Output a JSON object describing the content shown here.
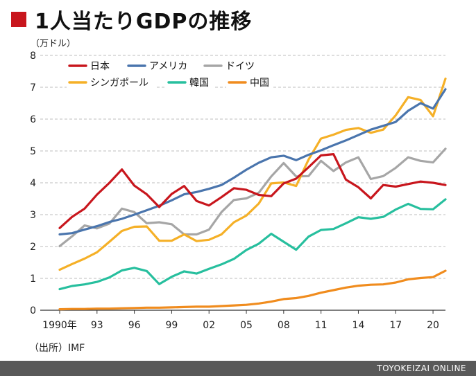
{
  "page": {
    "title": "1人当たりGDPの推移",
    "source": "（出所）IMF",
    "credit": "TOYOKEIZAI ONLINE"
  },
  "chart_data": {
    "type": "line",
    "title": "1人当たりGDPの推移",
    "ylabel": "（万ドル）",
    "xlabel": "",
    "ylim": [
      0,
      8
    ],
    "xlim": [
      1990,
      2021
    ],
    "y_ticks": [
      0,
      1,
      2,
      3,
      4,
      5,
      6,
      7,
      8
    ],
    "x_ticks": [
      {
        "x": 1990,
        "label": "1990年"
      },
      {
        "x": 1993,
        "label": "93"
      },
      {
        "x": 1996,
        "label": "96"
      },
      {
        "x": 1999,
        "label": "99"
      },
      {
        "x": 2002,
        "label": "02"
      },
      {
        "x": 2005,
        "label": "05"
      },
      {
        "x": 2008,
        "label": "08"
      },
      {
        "x": 2011,
        "label": "11"
      },
      {
        "x": 2014,
        "label": "14"
      },
      {
        "x": 2017,
        "label": "17"
      },
      {
        "x": 2020,
        "label": "20"
      }
    ],
    "grid": "horizontal dashed",
    "legend_position": "top-left",
    "x": [
      1990,
      1991,
      1992,
      1993,
      1994,
      1995,
      1996,
      1997,
      1998,
      1999,
      2000,
      2001,
      2002,
      2003,
      2004,
      2005,
      2006,
      2007,
      2008,
      2009,
      2010,
      2011,
      2012,
      2013,
      2014,
      2015,
      2016,
      2017,
      2018,
      2019,
      2020,
      2021
    ],
    "series": [
      {
        "name": "日本",
        "color": "#c8161d",
        "values": [
          2.58,
          2.93,
          3.19,
          3.63,
          4.0,
          4.42,
          3.91,
          3.64,
          3.24,
          3.65,
          3.9,
          3.43,
          3.29,
          3.55,
          3.83,
          3.78,
          3.62,
          3.58,
          3.98,
          4.13,
          4.49,
          4.86,
          4.9,
          4.1,
          3.86,
          3.51,
          3.93,
          3.88,
          3.96,
          4.04,
          4.0,
          3.93
        ]
      },
      {
        "name": "アメリカ",
        "color": "#4a75ad",
        "values": [
          2.38,
          2.42,
          2.53,
          2.64,
          2.77,
          2.87,
          3.0,
          3.14,
          3.28,
          3.45,
          3.64,
          3.71,
          3.81,
          3.93,
          4.16,
          4.41,
          4.63,
          4.8,
          4.85,
          4.71,
          4.88,
          5.02,
          5.18,
          5.33,
          5.5,
          5.67,
          5.79,
          5.91,
          6.26,
          6.5,
          6.33,
          6.94
        ]
      },
      {
        "name": "ドイツ",
        "color": "#a6a6a6",
        "values": [
          2.01,
          2.32,
          2.66,
          2.57,
          2.72,
          3.19,
          3.08,
          2.73,
          2.76,
          2.7,
          2.38,
          2.38,
          2.53,
          3.08,
          3.46,
          3.51,
          3.69,
          4.2,
          4.62,
          4.2,
          4.21,
          4.69,
          4.37,
          4.64,
          4.8,
          4.12,
          4.21,
          4.47,
          4.8,
          4.69,
          4.64,
          5.07
        ]
      },
      {
        "name": "シンガポール",
        "color": "#f5b027",
        "values": [
          1.27,
          1.45,
          1.62,
          1.82,
          2.15,
          2.49,
          2.62,
          2.63,
          2.18,
          2.18,
          2.38,
          2.17,
          2.21,
          2.38,
          2.76,
          2.97,
          3.35,
          3.98,
          4.01,
          3.9,
          4.73,
          5.39,
          5.51,
          5.66,
          5.72,
          5.57,
          5.67,
          6.12,
          6.69,
          6.6,
          6.09,
          7.27
        ]
      },
      {
        "name": "韓国",
        "color": "#27bf9e",
        "values": [
          0.66,
          0.76,
          0.81,
          0.89,
          1.03,
          1.25,
          1.33,
          1.23,
          0.82,
          1.05,
          1.22,
          1.15,
          1.3,
          1.44,
          1.61,
          1.89,
          2.09,
          2.4,
          2.15,
          1.9,
          2.31,
          2.52,
          2.55,
          2.73,
          2.92,
          2.87,
          2.93,
          3.16,
          3.34,
          3.18,
          3.17,
          3.48
        ]
      },
      {
        "name": "中国",
        "color": "#f08c1e",
        "values": [
          0.03,
          0.04,
          0.04,
          0.05,
          0.05,
          0.06,
          0.07,
          0.08,
          0.08,
          0.09,
          0.1,
          0.11,
          0.11,
          0.13,
          0.15,
          0.17,
          0.21,
          0.27,
          0.35,
          0.38,
          0.45,
          0.55,
          0.63,
          0.71,
          0.77,
          0.8,
          0.81,
          0.87,
          0.97,
          1.01,
          1.04,
          1.24
        ]
      }
    ]
  }
}
